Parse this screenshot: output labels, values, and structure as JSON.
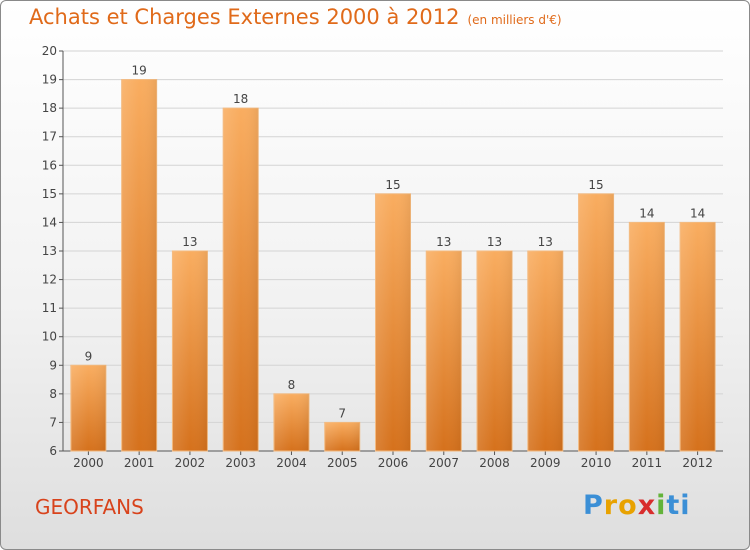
{
  "header": {
    "title": "Achats et Charges Externes 2000 à 2012",
    "unit": "(en milliers d'€)"
  },
  "commune": "GEORFANS",
  "logo": {
    "text": "Proxiti",
    "colors": [
      "#3b8fd6",
      "#e8a200",
      "#d82d2d",
      "#63b33a"
    ]
  },
  "colors": {
    "bar_light": "#f7a758",
    "bar_dark": "#d8731e",
    "title": "#e06a1a",
    "commune": "#d8431c"
  },
  "chart_data": {
    "type": "bar",
    "title": "Achats et Charges Externes 2000 à 2012",
    "subtitle": "(en milliers d'€)",
    "xlabel": "",
    "ylabel": "",
    "categories": [
      "2000",
      "2001",
      "2002",
      "2003",
      "2004",
      "2005",
      "2006",
      "2007",
      "2008",
      "2009",
      "2010",
      "2011",
      "2012"
    ],
    "values": [
      9,
      19,
      13,
      18,
      8,
      7,
      15,
      13,
      13,
      13,
      15,
      14,
      14
    ],
    "ylim": [
      6,
      20
    ],
    "yticks": [
      6,
      7,
      8,
      9,
      10,
      11,
      12,
      13,
      14,
      15,
      16,
      17,
      18,
      19,
      20
    ],
    "grid": true,
    "legend": "none"
  }
}
